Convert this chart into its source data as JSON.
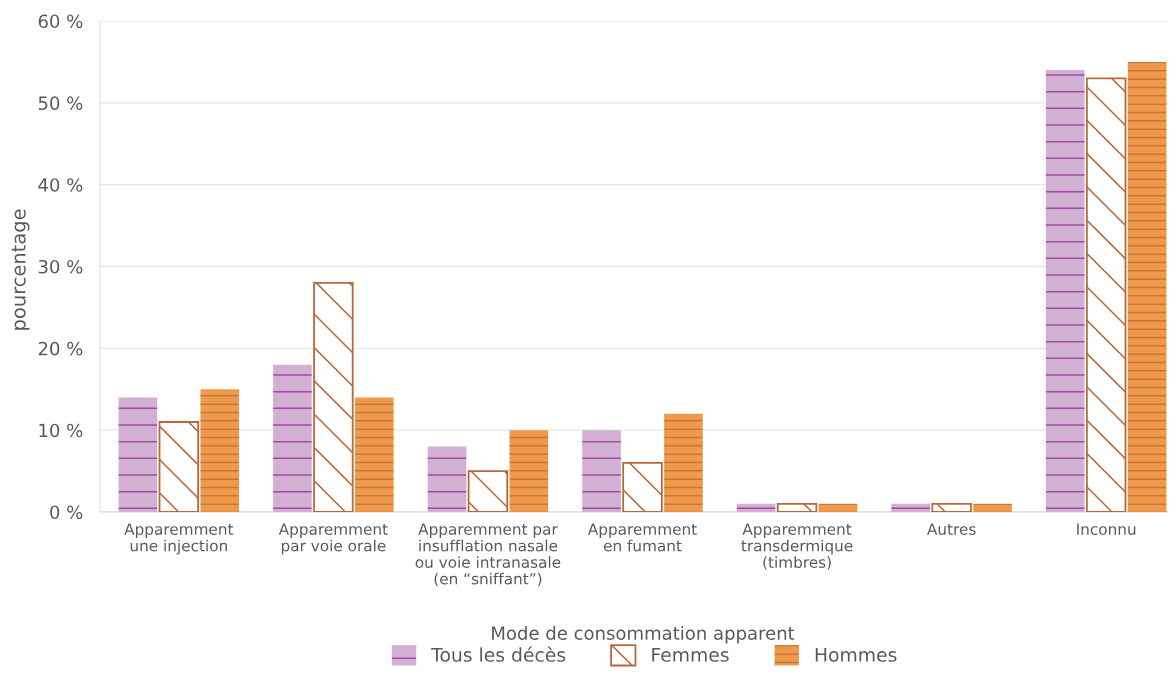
{
  "chart_data": {
    "type": "bar",
    "xlabel": "Mode de consommation apparent",
    "ylabel": "pourcentage",
    "categories": [
      "Apparemment\nune injection",
      "Apparemment\npar voie orale",
      "Apparemment par\ninsufflation nasale\nou voie intranasale\n(en “sniffant”)",
      "Apparemment\nen fumant",
      "Apparemment\ntransdermique\n(timbres)",
      "Autres",
      "Inconnu"
    ],
    "series": [
      {
        "name": "Tous les décès",
        "color": "#d2b0d4",
        "values": [
          14,
          18,
          8,
          10,
          1,
          1,
          54
        ]
      },
      {
        "name": "Femmes",
        "color": "#b8693c",
        "values": [
          11,
          28,
          5,
          6,
          1,
          1,
          53
        ]
      },
      {
        "name": "Hommes",
        "color": "#ef9a4a",
        "values": [
          15,
          14,
          10,
          12,
          1,
          1,
          55
        ]
      }
    ],
    "ylim": [
      0,
      60
    ],
    "yticks": [
      {
        "value": 0,
        "label": "0 %"
      },
      {
        "value": 10,
        "label": "10 %"
      },
      {
        "value": 20,
        "label": "20 %"
      },
      {
        "value": 30,
        "label": "30 %"
      },
      {
        "value": 40,
        "label": "40 %"
      },
      {
        "value": 50,
        "label": "50 %"
      },
      {
        "value": 60,
        "label": "60 %"
      }
    ],
    "grid": "y",
    "legend": "bottom"
  }
}
